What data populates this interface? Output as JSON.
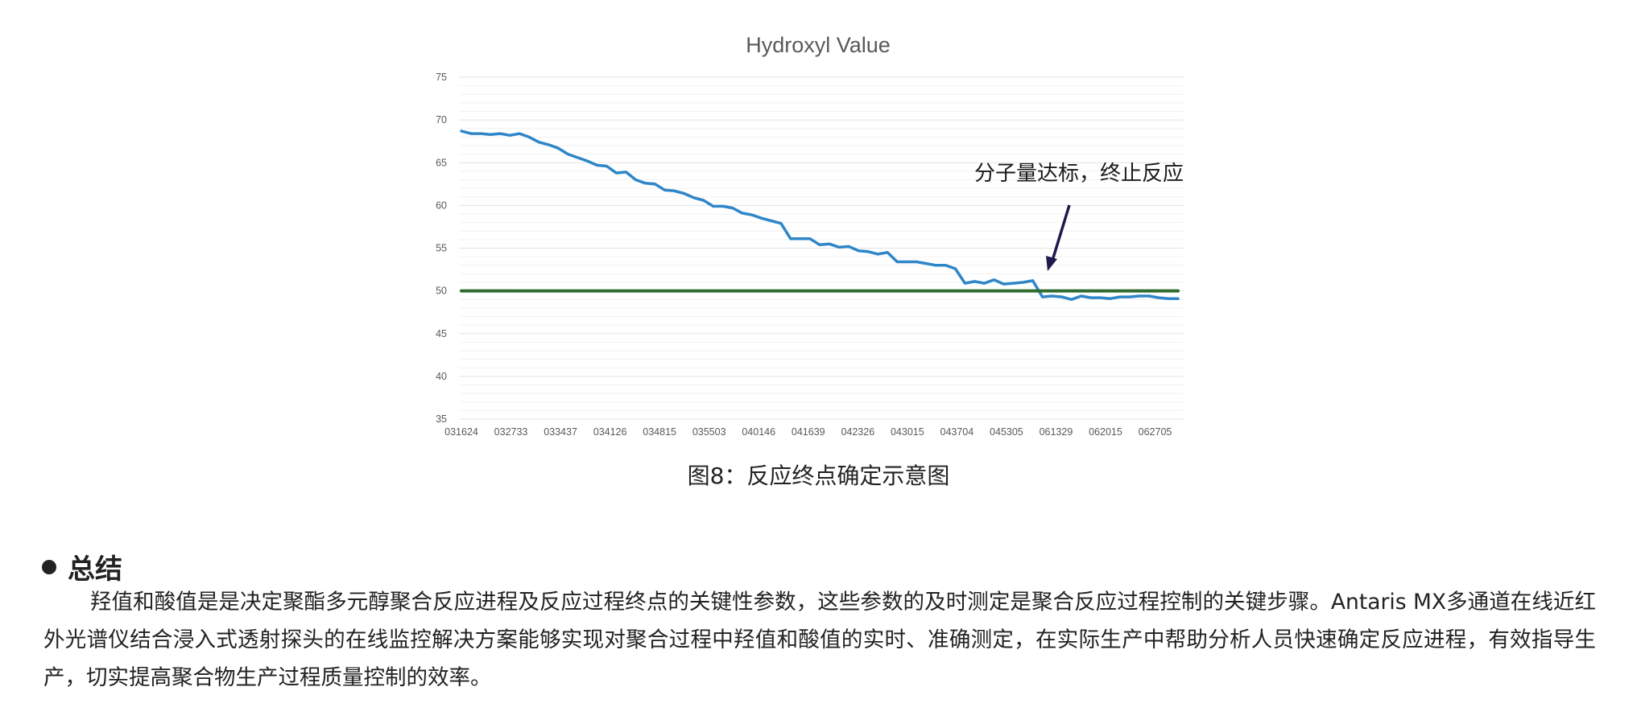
{
  "chart_data": {
    "type": "line",
    "title": "Hydroxyl Value",
    "ylim": [
      35,
      75
    ],
    "yticks": [
      35,
      40,
      45,
      50,
      55,
      60,
      65,
      70,
      75
    ],
    "grid": true,
    "x_tick_labels": [
      "031624",
      "032733",
      "033437",
      "034126",
      "034815",
      "035503",
      "040146",
      "041639",
      "042326",
      "043015",
      "043704",
      "045305",
      "061329",
      "062015",
      "062705"
    ],
    "series": [
      {
        "color": "#2E86C8",
        "values": [
          68.7,
          68.4,
          68.4,
          68.3,
          68.4,
          68.2,
          68.4,
          68.0,
          67.4,
          67.1,
          66.7,
          66.0,
          65.6,
          65.2,
          64.7,
          64.6,
          63.8,
          63.9,
          63.0,
          62.6,
          62.5,
          61.8,
          61.7,
          61.4,
          60.9,
          60.6,
          59.9,
          59.9,
          59.7,
          59.1,
          58.9,
          58.5,
          58.2,
          57.9,
          56.1,
          56.1,
          56.1,
          55.4,
          55.5,
          55.1,
          55.2,
          54.7,
          54.6,
          54.3,
          54.5,
          53.4,
          53.4,
          53.4,
          53.2,
          53.0,
          53.0,
          52.6,
          50.9,
          51.1,
          50.9,
          51.3,
          50.8,
          50.9,
          51.0,
          51.2,
          49.3,
          49.4,
          49.3,
          49.0,
          49.4,
          49.2,
          49.2,
          49.1,
          49.3,
          49.3,
          49.4,
          49.4,
          49.2,
          49.1,
          49.1
        ]
      },
      {
        "color": "#2F6B2F",
        "values": [
          50,
          50
        ]
      }
    ],
    "annotation": {
      "text": "分子量达标，终止反应",
      "points_to_index": 60
    }
  },
  "caption": "图8：反应终点确定示意图",
  "summary": {
    "title": "总结",
    "paragraph": "羟值和酸值是是决定聚酯多元醇聚合反应进程及反应过程终点的关键性参数，这些参数的及时测定是聚合反应过程控制的关键步骤。Antaris MX多通道在线近红外光谱仪结合浸入式透射探头的在线监控解决方案能够实现对聚合过程中羟值和酸值的实时、准确测定，在实际生产中帮助分析人员快速确定反应进程，有效指导生产，切实提高聚合物生产过程质量控制的效率。"
  }
}
